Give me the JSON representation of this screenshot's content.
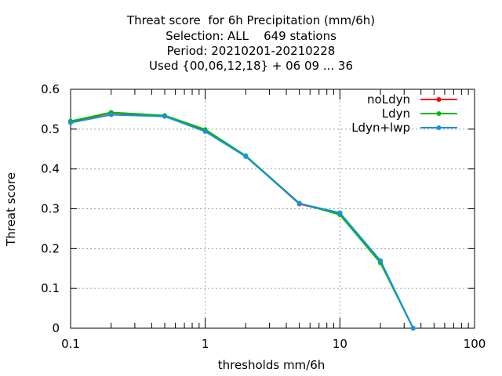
{
  "chart_data": {
    "type": "line",
    "title_lines": [
      "Threat score  for 6h Precipitation (mm/6h)",
      "Selection: ALL    649 stations",
      "Period: 20210201-20210228",
      "Used {00,06,12,18} + 06 09 ... 36"
    ],
    "xlabel": "thresholds mm/6h",
    "ylabel": "Threat score",
    "x_scale": "log",
    "xlim": [
      0.1,
      100
    ],
    "ylim": [
      0,
      0.6
    ],
    "x_ticks": [
      0.1,
      1,
      10,
      100
    ],
    "x_tick_labels": [
      "0.1",
      "1",
      "10",
      "100"
    ],
    "y_ticks": [
      0,
      0.1,
      0.2,
      0.3,
      0.4,
      0.5,
      0.6
    ],
    "y_tick_labels": [
      "0",
      "0.1",
      "0.2",
      "0.3",
      "0.4",
      "0.5",
      "0.6"
    ],
    "grid": true,
    "legend_position": "top-right",
    "x": [
      0.1,
      0.2,
      0.5,
      1,
      2,
      5,
      10,
      20,
      35
    ],
    "series": [
      {
        "name": "noLdyn",
        "color": "#ff0000",
        "values": [
          0.519,
          0.541,
          0.533,
          0.497,
          0.432,
          0.312,
          0.288,
          0.168,
          0.0
        ]
      },
      {
        "name": "Ldyn",
        "color": "#00bb00",
        "values": [
          0.52,
          0.542,
          0.534,
          0.499,
          0.433,
          0.314,
          0.285,
          0.164,
          0.0
        ]
      },
      {
        "name": "Ldyn+lwp",
        "color": "#1a8fe8",
        "values": [
          0.516,
          0.536,
          0.532,
          0.494,
          0.431,
          0.313,
          0.29,
          0.17,
          0.0
        ]
      }
    ]
  }
}
